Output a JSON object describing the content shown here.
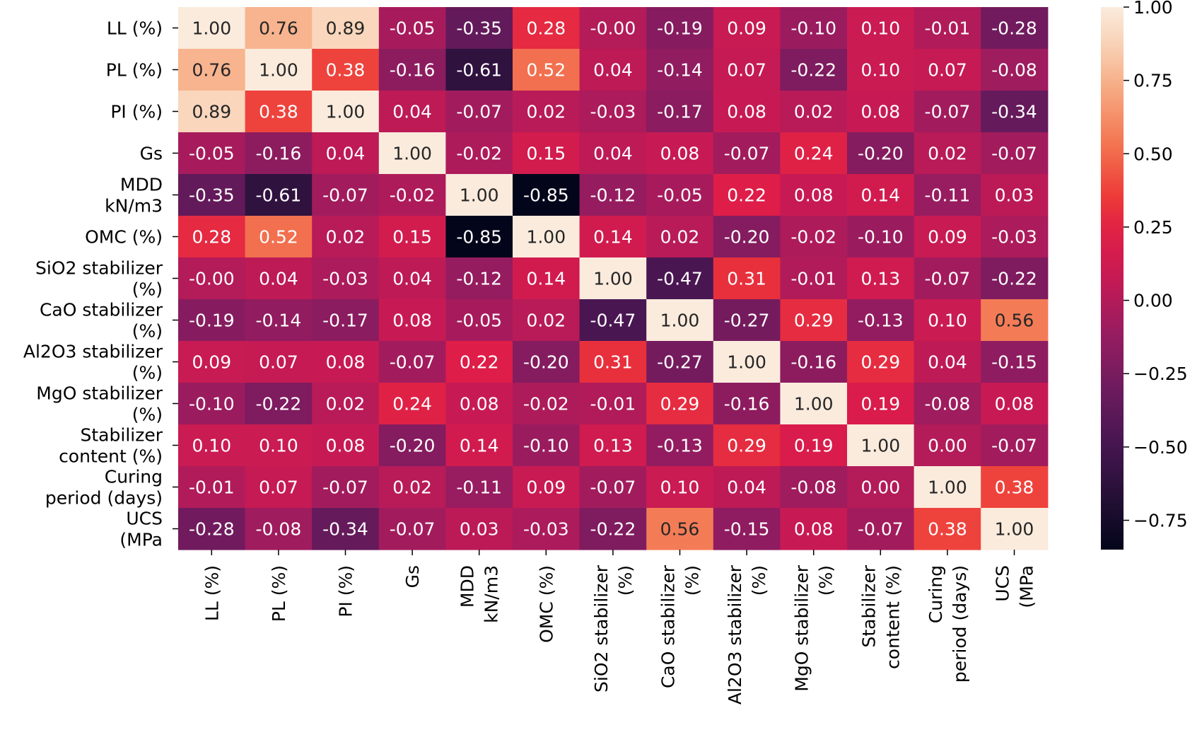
{
  "chart_data": {
    "type": "heatmap",
    "title": "",
    "colormap": "rocket",
    "row_labels": [
      [
        "LL (%)"
      ],
      [
        "PL (%)"
      ],
      [
        "PI (%)"
      ],
      [
        "Gs"
      ],
      [
        "MDD",
        "kN/m3"
      ],
      [
        "OMC (%)"
      ],
      [
        "SiO2 stabilizer",
        "(%)"
      ],
      [
        "CaO stabilizer",
        "(%)"
      ],
      [
        "Al2O3 stabilizer",
        "(%)"
      ],
      [
        "MgO stabilizer",
        "(%)"
      ],
      [
        "Stabilizer",
        "content (%)"
      ],
      [
        "Curing",
        "period (days)"
      ],
      [
        "UCS",
        "(MPa"
      ]
    ],
    "col_labels": [
      [
        "LL (%)"
      ],
      [
        "PL (%)"
      ],
      [
        "PI (%)"
      ],
      [
        "Gs"
      ],
      [
        "MDD",
        "kN/m3"
      ],
      [
        "OMC (%)"
      ],
      [
        "SiO2 stabilizer",
        "(%)"
      ],
      [
        "CaO stabilizer",
        "(%)"
      ],
      [
        "Al2O3 stabilizer",
        "(%)"
      ],
      [
        "MgO stabilizer",
        "(%)"
      ],
      [
        "Stabilizer",
        "content (%)"
      ],
      [
        "Curing",
        "period (days)"
      ],
      [
        "UCS",
        "(MPa"
      ]
    ],
    "values": [
      [
        1.0,
        0.76,
        0.89,
        -0.05,
        -0.35,
        0.28,
        -0.0,
        -0.19,
        0.09,
        -0.1,
        0.1,
        -0.01,
        -0.28
      ],
      [
        0.76,
        1.0,
        0.38,
        -0.16,
        -0.61,
        0.52,
        0.04,
        -0.14,
        0.07,
        -0.22,
        0.1,
        0.07,
        -0.08
      ],
      [
        0.89,
        0.38,
        1.0,
        0.04,
        -0.07,
        0.02,
        -0.03,
        -0.17,
        0.08,
        0.02,
        0.08,
        -0.07,
        -0.34
      ],
      [
        -0.05,
        -0.16,
        0.04,
        1.0,
        -0.02,
        0.15,
        0.04,
        0.08,
        -0.07,
        0.24,
        -0.2,
        0.02,
        -0.07
      ],
      [
        -0.35,
        -0.61,
        -0.07,
        -0.02,
        1.0,
        -0.85,
        -0.12,
        -0.05,
        0.22,
        0.08,
        0.14,
        -0.11,
        0.03
      ],
      [
        0.28,
        0.52,
        0.02,
        0.15,
        -0.85,
        1.0,
        0.14,
        0.02,
        -0.2,
        -0.02,
        -0.1,
        0.09,
        -0.03
      ],
      [
        -0.0,
        0.04,
        -0.03,
        0.04,
        -0.12,
        0.14,
        1.0,
        -0.47,
        0.31,
        -0.01,
        0.13,
        -0.07,
        -0.22
      ],
      [
        -0.19,
        -0.14,
        -0.17,
        0.08,
        -0.05,
        0.02,
        -0.47,
        1.0,
        -0.27,
        0.29,
        -0.13,
        0.1,
        0.56
      ],
      [
        0.09,
        0.07,
        0.08,
        -0.07,
        0.22,
        -0.2,
        0.31,
        -0.27,
        1.0,
        -0.16,
        0.29,
        0.04,
        -0.15
      ],
      [
        -0.1,
        -0.22,
        0.02,
        0.24,
        0.08,
        -0.02,
        -0.01,
        0.29,
        -0.16,
        1.0,
        0.19,
        -0.08,
        0.08
      ],
      [
        0.1,
        0.1,
        0.08,
        -0.2,
        0.14,
        -0.1,
        0.13,
        -0.13,
        0.29,
        0.19,
        1.0,
        0.0,
        -0.07
      ],
      [
        -0.01,
        0.07,
        -0.07,
        0.02,
        -0.11,
        0.09,
        -0.07,
        0.1,
        0.04,
        -0.08,
        0.0,
        1.0,
        0.38
      ],
      [
        -0.28,
        -0.08,
        -0.34,
        -0.07,
        0.03,
        -0.03,
        -0.22,
        0.56,
        -0.15,
        0.08,
        -0.07,
        0.38,
        1.0
      ]
    ],
    "value_format": "0.00",
    "colorbar": {
      "vmin": -0.85,
      "vmax": 1.0,
      "ticks": [
        1.0,
        0.75,
        0.5,
        0.25,
        0.0,
        -0.25,
        -0.5,
        -0.75
      ],
      "tick_labels": [
        "1.00",
        "0.75",
        "0.50",
        "0.25",
        "0.00",
        "−0.25",
        "−0.50",
        "−0.75"
      ]
    }
  }
}
